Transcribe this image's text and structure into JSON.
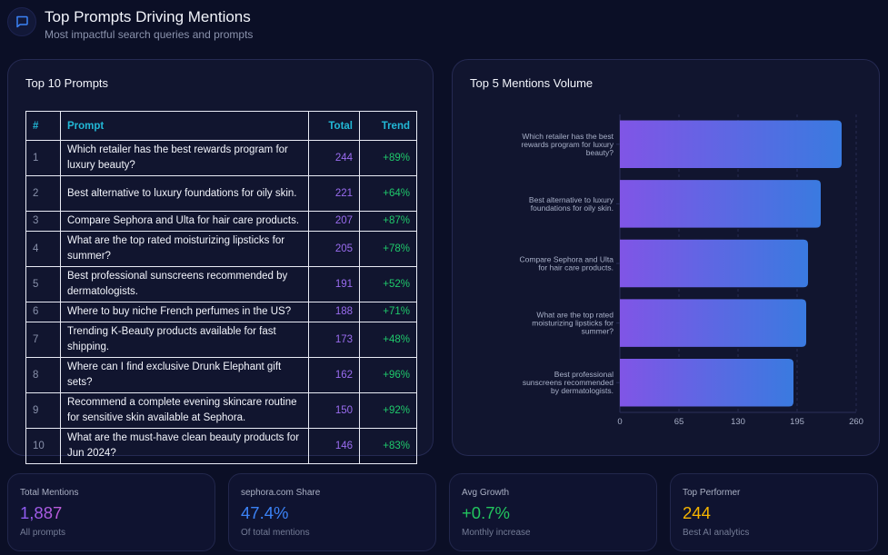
{
  "header": {
    "icon": "chat-bubble-icon",
    "title": "Top Prompts Driving Mentions",
    "subtitle": "Most impactful search queries and prompts"
  },
  "table_card": {
    "title": "Top 10 Prompts",
    "columns": [
      "#",
      "Prompt",
      "Total",
      "Trend"
    ],
    "rows": [
      {
        "rank": "1",
        "prompt": "Which retailer has the best rewards program for luxury beauty?",
        "total": "244",
        "trend": "+89%"
      },
      {
        "rank": "2",
        "prompt": "Best alternative to luxury foundations for oily skin.",
        "total": "221",
        "trend": "+64%"
      },
      {
        "rank": "3",
        "prompt": "Compare Sephora and Ulta for hair care products.",
        "total": "207",
        "trend": "+87%"
      },
      {
        "rank": "4",
        "prompt": "What are the top rated moisturizing lipsticks for summer?",
        "total": "205",
        "trend": "+78%"
      },
      {
        "rank": "5",
        "prompt": "Best professional sunscreens recommended by dermatologists.",
        "total": "191",
        "trend": "+52%"
      },
      {
        "rank": "6",
        "prompt": "Where to buy niche French perfumes in the US?",
        "total": "188",
        "trend": "+71%"
      },
      {
        "rank": "7",
        "prompt": "Trending K-Beauty products available for fast shipping.",
        "total": "173",
        "trend": "+48%"
      },
      {
        "rank": "8",
        "prompt": "Where can I find exclusive Drunk Elephant gift sets?",
        "total": "162",
        "trend": "+96%"
      },
      {
        "rank": "9",
        "prompt": "Recommend a complete evening skincare routine for sensitive skin available at Sephora.",
        "total": "150",
        "trend": "+92%"
      },
      {
        "rank": "10",
        "prompt": "What are the must-have clean beauty products for Jun 2024?",
        "total": "146",
        "trend": "+83%"
      }
    ]
  },
  "chart_card": {
    "title": "Top 5 Mentions Volume"
  },
  "chart_data": {
    "type": "bar",
    "orientation": "horizontal",
    "title": "Top 5 Mentions Volume",
    "categories": [
      [
        "Which retailer has the best",
        "rewards program for luxury",
        "beauty?"
      ],
      [
        "Best alternative to luxury",
        "foundations for oily skin."
      ],
      [
        "Compare Sephora and Ulta",
        "for hair care products."
      ],
      [
        "What are the top rated",
        "moisturizing lipsticks for",
        "summer?"
      ],
      [
        "Best professional",
        "sunscreens recommended",
        "by dermatologists."
      ]
    ],
    "values": [
      244,
      221,
      207,
      205,
      191
    ],
    "xlabel": "",
    "ylabel": "",
    "xlim": [
      0,
      260
    ],
    "xticks": [
      0,
      65,
      130,
      195,
      260
    ],
    "grid": true,
    "gradient": [
      "#8055e6",
      "#3a7ae0"
    ]
  },
  "stats": [
    {
      "label": "Total Mentions",
      "value": "1,887",
      "sub": "All prompts",
      "color": "purple"
    },
    {
      "label": "sephora.com Share",
      "value": "47.4%",
      "sub": "Of total mentions",
      "color": "blue"
    },
    {
      "label": "Avg Growth",
      "value": "+0.7%",
      "sub": "Monthly increase",
      "color": "green"
    },
    {
      "label": "Top Performer",
      "value": "244",
      "sub": "Best AI analytics",
      "color": "amber"
    }
  ]
}
